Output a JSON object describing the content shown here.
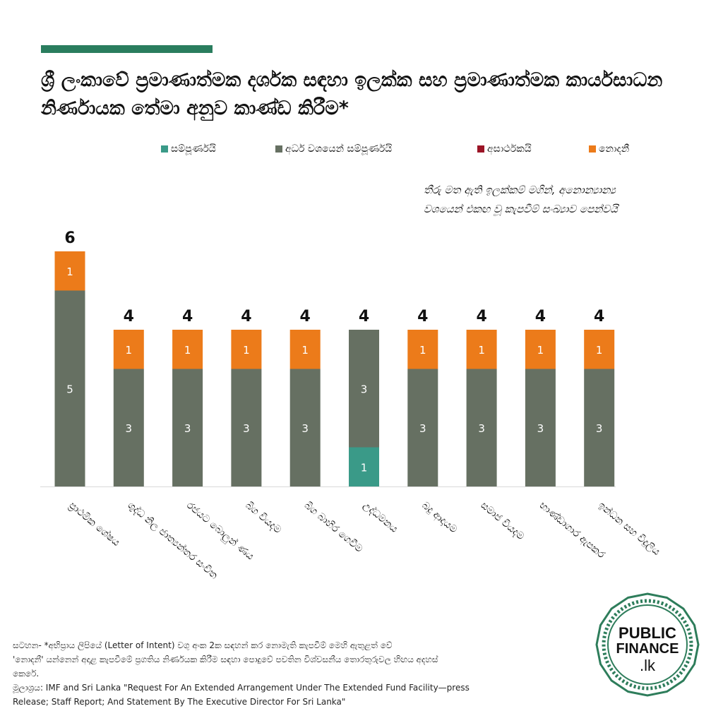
{
  "colors": {
    "accent": "#2a7d5e",
    "complete": "#3a9a88",
    "partial": "#667062",
    "unsatisfactory": "#9b1426",
    "no_data": "#ec7b1a",
    "logo": "#2e7d5b"
  },
  "header": {
    "title": "ශ්‍රී ලංකාවේ ප්‍රමාණාත්මක දර්ශක සඳහා ඉලක්ක සහ ප්‍රමාණාත්මක කාර්යසාධන නිර්ණායක තේමා අනුව කාණ්ඩ කිරීම*"
  },
  "legend": [
    {
      "key": "complete",
      "label": "සම්පූර්ණයි"
    },
    {
      "key": "partial",
      "label": "අර්ධ වශයෙන් සම්පූර්ණයි"
    },
    {
      "key": "unsatisfactory",
      "label": "අසාර්ථකයි"
    },
    {
      "key": "no_data",
      "label": "නොදනී"
    }
  ],
  "note": {
    "line1": "තීරු මත ඇති ඉලක්කම් මගින්, අනොන්‍යාන්‍ය",
    "line2": "වශයෙන් එකඟ වූ කැපවීම් සංඛ්‍යාව පෙන්වයි"
  },
  "chart_data": {
    "type": "bar",
    "stacked": true,
    "title": "ශ්‍රී ලංකාවේ ප්‍රමාණාත්මක දර්ශක සඳහා ඉලක්ක සහ ප්‍රමාණාත්මක කාර්යසාධන නිර්ණායක තේමා අනුව කාණ්ඩ කිරීම*",
    "xlabel": "",
    "ylabel": "",
    "ylim": [
      0,
      6
    ],
    "grid": false,
    "legend_position": "top",
    "categories": [
      "ප්‍රාථමික ශේෂය",
      "ශුද්ධ නිල ජාත්‍යන්තර සංචිත",
      "රජයට බොලුන් ණය",
      "බිග වියදම",
      "බිග බාහිර ගෙවීම",
      "උද්ධමනය",
      "බදු ආදායම",
      "සමාජ වියදම",
      "භාණ්ඩාගාර ඇපකර",
      "ඉන්ධන සහ විදුලිය"
    ],
    "totals": [
      6,
      4,
      4,
      4,
      4,
      4,
      4,
      4,
      4,
      4
    ],
    "series": [
      {
        "name": "සම්පූර්ණයි",
        "key": "complete",
        "values": [
          0,
          0,
          0,
          0,
          0,
          1,
          0,
          0,
          0,
          0
        ]
      },
      {
        "name": "අර්ධ වශයෙන් සම්පූර්ණයි",
        "key": "partial",
        "values": [
          5,
          3,
          3,
          3,
          3,
          3,
          3,
          3,
          3,
          3
        ]
      },
      {
        "name": "අසාර්ථකයි",
        "key": "unsatisfactory",
        "values": [
          0,
          0,
          0,
          0,
          0,
          0,
          0,
          0,
          0,
          0
        ]
      },
      {
        "name": "නොදනී",
        "key": "no_data",
        "values": [
          1,
          1,
          1,
          1,
          1,
          0,
          1,
          1,
          1,
          1
        ]
      }
    ]
  },
  "footer": {
    "note_line1": "සටහන-  *අභිප්‍රාය ලිපියේ (Letter of Intent) වගු අංක 2ක සඳහන් කර නොමැති කැපවීම් මෙහි ඇතුළත් වේ",
    "note_line2": "'නොදනී' යන්නෙන් අදාළ කැපවීමේ ප්‍රගතිය නිර්ණයක කිරීම සඳහා පොදුවේ පවතින විශ්වසනීය තොරතුරුවල හිඟය අදහස්",
    "note_line3": "කෙරේ.",
    "source_line1": "මූලාශ්‍රය: IMF and Sri Lanka \"Request For An Extended Arrangement Under The Extended Fund Facility—press",
    "source_line2": "Release; Staff Report; And Statement By The Executive Director For Sri Lanka\""
  },
  "logo": {
    "line1": "PUBLIC",
    "line2": "FINANCE",
    "line3": ".lk"
  }
}
